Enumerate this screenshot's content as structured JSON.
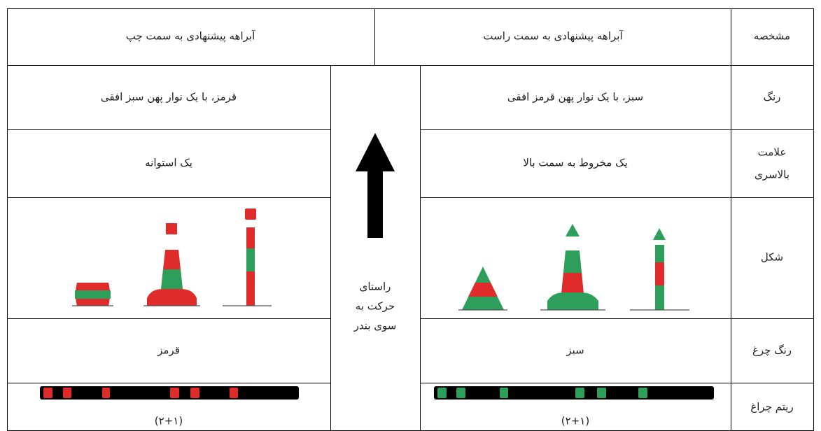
{
  "header": {
    "left": "آبراهه پیشنهادی به سمت چپ",
    "right": "آبراهه پیشنهادی به سمت راست",
    "feature": "مشخصه"
  },
  "rows": [
    {
      "label": "رنگ",
      "right": "سبز، با یک نوار پهن قرمز افقی",
      "left": "قرمز، با یک نوار پهن سبز افقی"
    },
    {
      "label": [
        "علامت",
        "بالاسری"
      ],
      "right": "یک مخروط به سمت بالا",
      "left": "یک استوانه"
    },
    {
      "label": "شکل"
    },
    {
      "label": "رنگ چرغ",
      "right": "سبز",
      "left": "قرمز"
    },
    {
      "label": "ریتم چراغ",
      "right": "(۲+۱)",
      "left": "(۲+۱)"
    }
  ],
  "middle": [
    "راستای",
    "حرکت به",
    "سوی بندر"
  ]
}
